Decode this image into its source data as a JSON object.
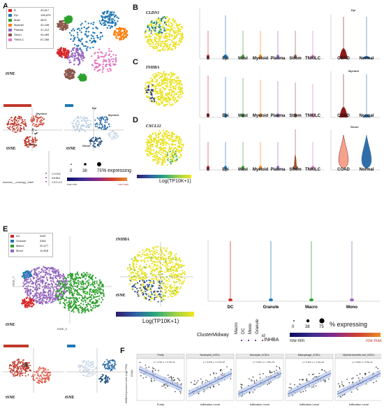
{
  "panels": {
    "A": {
      "letter": "A",
      "legend": [
        {
          "name": "B",
          "value": "20,817",
          "color": "#d62728"
        },
        {
          "name": "Epi",
          "value": "196,875",
          "color": "#1f77b4"
        },
        {
          "name": "Mast",
          "value": "3872",
          "color": "#2ca02c"
        },
        {
          "name": "Myeloid",
          "value": "42,448",
          "color": "#ff7f0e"
        },
        {
          "name": "Plasma",
          "value": "47,412",
          "color": "#9467bd"
        },
        {
          "name": "Strom",
          "value": "44,489",
          "color": "#8c564b"
        },
        {
          "name": "TNKILC",
          "value": "67,285",
          "color": "#e377c2"
        }
      ],
      "tsne_label": "tSNE",
      "sub_plot_labels": [
        "Myeloid",
        "Strom",
        "Epi",
        "Myeloid",
        "Strom"
      ],
      "sub_tsne_label_left": "tSNE",
      "sub_tsne_label_right": "tSNE",
      "dot_sizes": [
        "0",
        "38",
        "75"
      ],
      "expressing_label": "% expressing",
      "row_min": "row min",
      "row_max": "row max",
      "genes": [
        "CLDN1",
        "INHBA",
        "CXCL12"
      ],
      "axis_label": "disease__ontology_label"
    },
    "B": {
      "letter": "B",
      "gene": "CLDN1",
      "title": "Epi"
    },
    "C": {
      "letter": "C",
      "gene": "INHBA",
      "title": "Myeloid"
    },
    "D": {
      "letter": "D",
      "gene": "CXCL12",
      "title": "Strom"
    },
    "BCD_categories": [
      "B",
      "Epi",
      "Mast",
      "Myeloid",
      "Plasma",
      "Strom",
      "TNKILC"
    ],
    "BCD_right_categories": [
      "COAD",
      "Normal"
    ],
    "BCD_colorbar": "Log(TP10K+1)",
    "E": {
      "letter": "E",
      "legend": [
        {
          "name": "DC",
          "value": "2087",
          "color": "#d62728"
        },
        {
          "name": "Granule",
          "value": "3362",
          "color": "#1f77b4"
        },
        {
          "name": "Macro",
          "value": "20,477",
          "color": "#2ca02c"
        },
        {
          "name": "Mono",
          "value": "11,808",
          "color": "#9467bd"
        }
      ],
      "tsne_label": "tSNE",
      "tsne_x": "tSNE_X",
      "tsne_y": "tSNE_Y",
      "gene": "INHBA",
      "gene_tsne_label": "tSNE",
      "colorbar": "Log(TP10K+1)",
      "violin_categories": [
        "DC",
        "Granule",
        "Macro",
        "Mono"
      ],
      "dot_cluster_title": "ClusterMidway",
      "dot_clusters": [
        "Macro",
        "DC",
        "Mono",
        "Granule"
      ],
      "dot_id": "id",
      "dot_gene": "INHBA",
      "dot_sizes": [
        "0",
        "38",
        "75"
      ],
      "expressing_label": "% expressing",
      "row_min": "row min",
      "row_max": "row max",
      "sub_tsne_left": "tSNE",
      "sub_tsne_right": "tSNE"
    },
    "F": {
      "letter": "F",
      "ylabel": "INHBA Expression Level (log2 TPM)",
      "facets": [
        "Purity",
        "Neutrophil_XCELL",
        "Monocyte_XCELL",
        "Macrophage_XCELL",
        "Myeloid dendritic cell_XCELL"
      ],
      "stats": [
        "ρ = -0.34, p = 3.73e-14",
        "ρ = 0.278, p = 2.07e-10",
        "ρ = 0.321, p = 1.87e-13",
        "ρ = 0.322, p = 1.31e-13",
        "ρ = 0.302, p = 5.8e-12"
      ],
      "xlabels": [
        "Purity",
        "Infiltration Level",
        "Infiltration Level",
        "Infiltration Level",
        "Infiltration Level"
      ],
      "row_label": "COAD"
    }
  }
}
